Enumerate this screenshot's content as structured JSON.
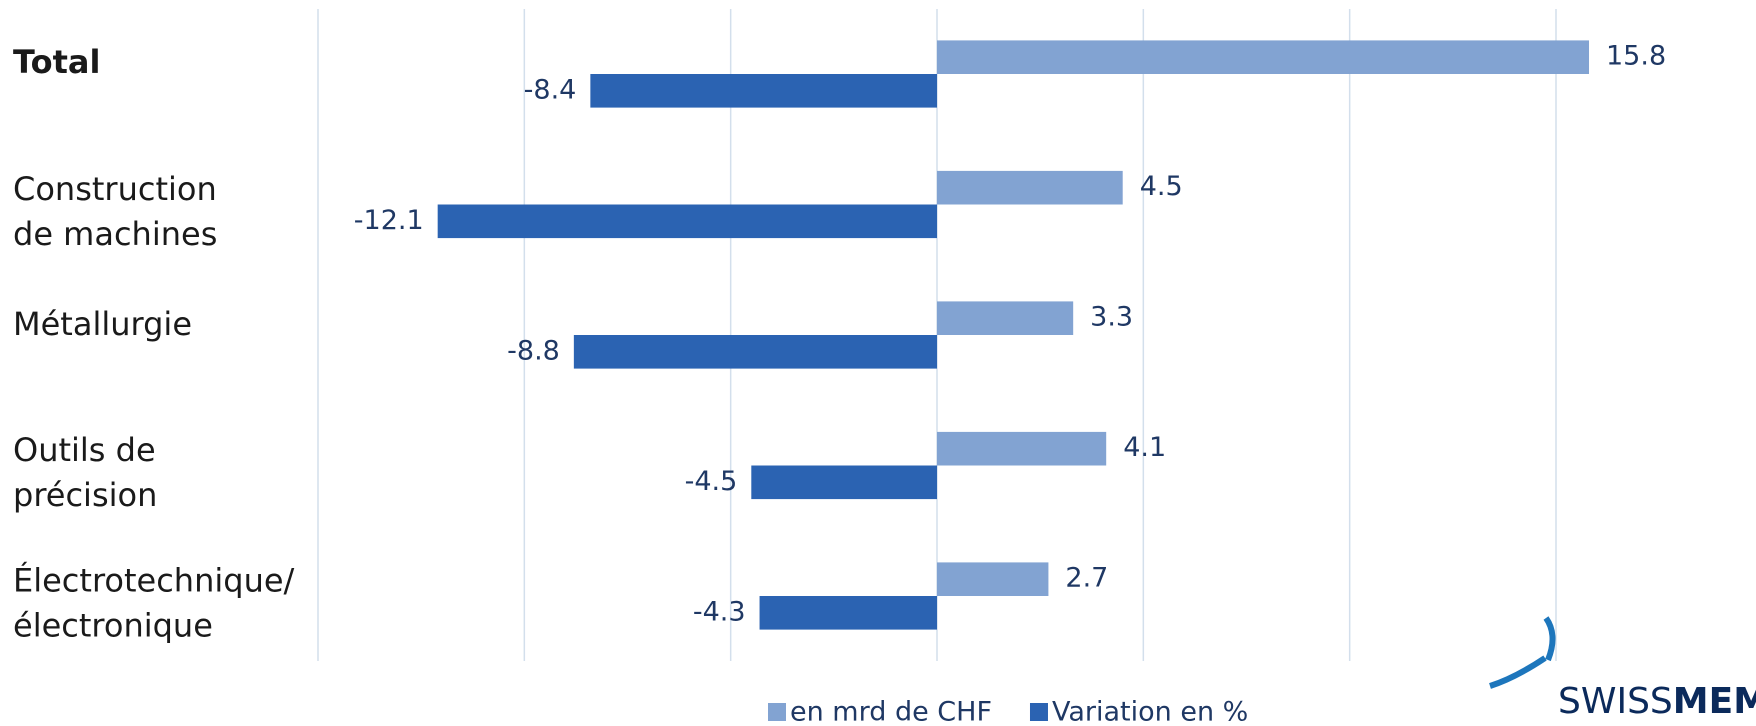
{
  "chart_data": {
    "type": "hbar",
    "categories": [
      "Total",
      "Construction\nde machines",
      "Métallurgie",
      "Outils de\nprécision",
      "Électrotechnique/\nélectronique"
    ],
    "series": [
      {
        "name": "en mrd de CHF",
        "color": "#82a3d2",
        "values": [
          15.8,
          4.5,
          3.3,
          4.1,
          2.7
        ]
      },
      {
        "name": "Variation en %",
        "color": "#2b63b2",
        "values": [
          -8.4,
          -12.1,
          -8.8,
          -4.5,
          -4.3
        ]
      }
    ],
    "xlim": [
      -15,
      15
    ],
    "xticks": [
      -15,
      -10,
      -5,
      0,
      5,
      10,
      15
    ],
    "grid": true,
    "legend": "bottom",
    "logo": [
      "SWISS",
      "MEM"
    ]
  }
}
